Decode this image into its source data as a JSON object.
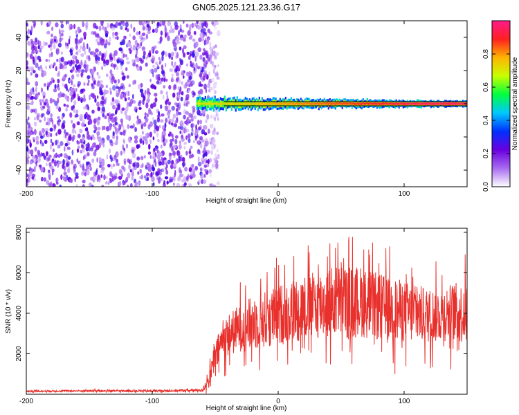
{
  "figure_title": "GN05.2025.121.23.36.G17",
  "colors": {
    "snr_line": "#e8302c",
    "ridge": "#e8305a",
    "colormap": [
      "#ffffff",
      "#a86cf0",
      "#6a00e0",
      "#0030ff",
      "#00c8ff",
      "#00ff40",
      "#c8ff00",
      "#ffb400",
      "#ff2020",
      "#ff1a8c"
    ]
  },
  "chart_data": [
    {
      "type": "heatmap",
      "title": "",
      "xlabel": "Height of straight line (km)",
      "ylabel": "Frequency (Hz)",
      "xlim": [
        -200,
        150
      ],
      "ylim": [
        -50,
        50
      ],
      "x_ticks": [
        -200,
        -100,
        0,
        100
      ],
      "x_tick_labels": [
        "-200",
        "-100",
        "0",
        "100"
      ],
      "y_ticks": [
        -40,
        -20,
        0,
        20,
        40
      ],
      "y_tick_labels": [
        "-40",
        "-20",
        "0",
        "20",
        "40"
      ],
      "grid": false,
      "colorbar": {
        "label": "Normalized spectral amplitude",
        "range": [
          0,
          1
        ],
        "ticks": [
          0.0,
          0.2,
          0.4,
          0.6,
          0.8
        ],
        "tick_labels": [
          "0.0",
          "0.2",
          "0.4",
          "0.6",
          "0.8"
        ]
      },
      "regions": {
        "noise_region_x": [
          -200,
          -55
        ],
        "noise_amplitude_range": [
          0.05,
          0.3
        ],
        "signal_ridge_start_x": -65,
        "signal_ridge_frequency_hz": 0,
        "signal_ridge_amplitude": 0.95
      }
    },
    {
      "type": "line",
      "title": "",
      "xlabel": "Height of straight line (km)",
      "ylabel": "SNR (10 * v/v)",
      "xlim": [
        -200,
        150
      ],
      "ylim": [
        0,
        8200
      ],
      "x_ticks": [
        -200,
        -100,
        0,
        100
      ],
      "x_tick_labels": [
        "-200",
        "-100",
        "0",
        "100"
      ],
      "y_ticks": [
        2000,
        4000,
        6000,
        8000
      ],
      "y_tick_labels": [
        "2000",
        "4000",
        "6000",
        "8000"
      ],
      "grid": false,
      "series": [
        {
          "x": [
            -200,
            -150,
            -100,
            -60,
            -55,
            -50,
            -45,
            -40,
            -35,
            -30,
            -25,
            -20,
            -15,
            -10,
            -5,
            0,
            5,
            10,
            15,
            20,
            25,
            30,
            35,
            40,
            45,
            50,
            55,
            60,
            65,
            70,
            75,
            80,
            85,
            90,
            95,
            100,
            105,
            110,
            115,
            120,
            125,
            130,
            135,
            140,
            145,
            150
          ],
          "y": [
            150,
            170,
            160,
            200,
            700,
            1800,
            2600,
            2900,
            3100,
            3300,
            3400,
            3500,
            3600,
            3700,
            3800,
            3900,
            4000,
            4100,
            4200,
            4300,
            4300,
            4400,
            4500,
            4500,
            4600,
            4600,
            4500,
            4600,
            4600,
            4500,
            4400,
            4300,
            4300,
            4200,
            4100,
            4100,
            4000,
            4000,
            3900,
            3900,
            3900,
            4000,
            4000,
            4100,
            4000,
            4000
          ],
          "noise_amplitude": [
            50,
            60,
            60,
            80,
            500,
            900,
            1100,
            1300,
            1400,
            1500,
            1600,
            1700,
            1700,
            1800,
            1800,
            1900,
            1900,
            2000,
            2000,
            2100,
            2100,
            2100,
            2200,
            2200,
            2300,
            2300,
            2300,
            2200,
            2200,
            2200,
            2100,
            2100,
            2000,
            2000,
            2000,
            1900,
            1900,
            1800,
            1800,
            1700,
            1700,
            1700,
            1800,
            1800,
            1900,
            1900
          ]
        }
      ]
    }
  ]
}
